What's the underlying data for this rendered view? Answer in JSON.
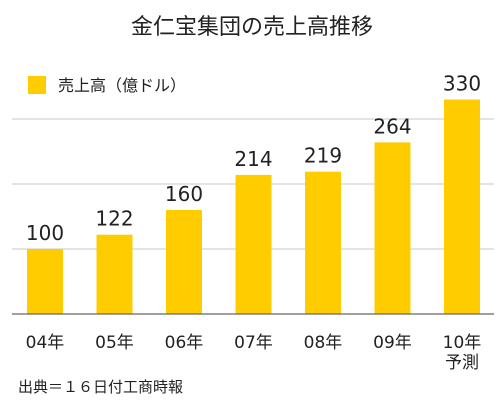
{
  "chart_data": {
    "type": "bar",
    "title": "金仁宝集団の売上高推移",
    "categories": [
      [
        "04年"
      ],
      [
        "05年"
      ],
      [
        "06年"
      ],
      [
        "07年"
      ],
      [
        "08年"
      ],
      [
        "09年"
      ],
      [
        "10年",
        "予測"
      ]
    ],
    "series": [
      {
        "name": "売上高（億ドル）",
        "color": "#ffcc00",
        "values": [
          100,
          122,
          160,
          214,
          219,
          264,
          330
        ]
      }
    ],
    "data_labels": [
      "100",
      "122",
      "160",
      "214",
      "219",
      "264",
      "330"
    ],
    "ylim": [
      0,
      360
    ],
    "grid": true,
    "legend_position": "top-left",
    "xlabel": "",
    "ylabel": "",
    "source": "出典＝１６日付工商時報"
  }
}
